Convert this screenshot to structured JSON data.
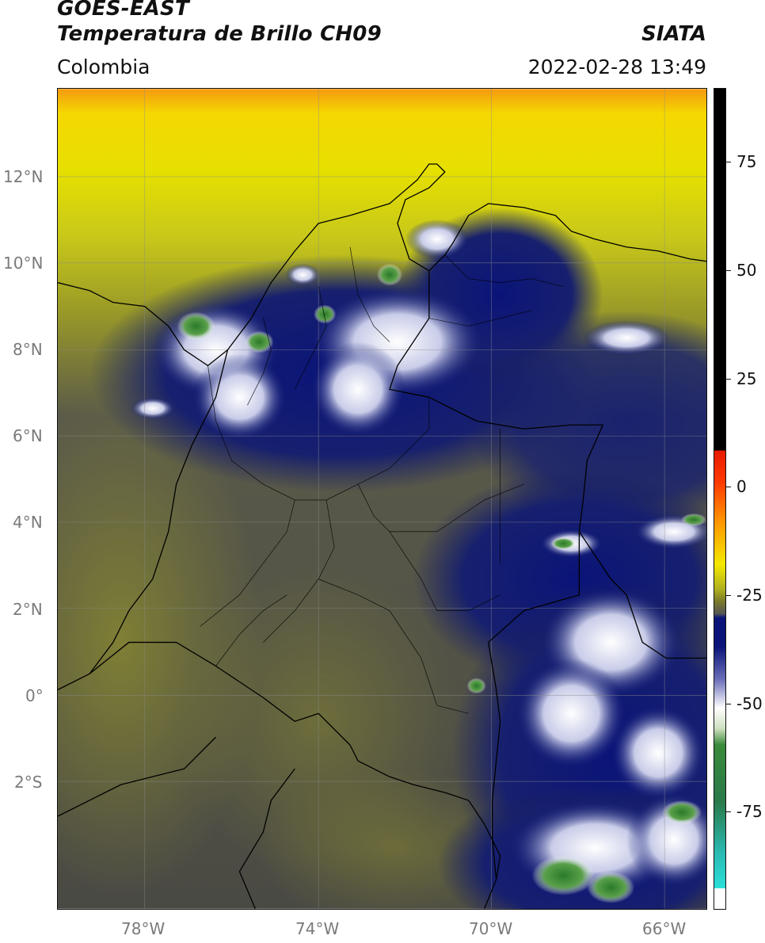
{
  "header": {
    "title_line1": "GOES-EAST",
    "title_line2": "Temperatura de Brillo CH09",
    "subtitle": "Colombia",
    "source": "SIATA",
    "timestamp": "2022-02-28 13:49"
  },
  "map": {
    "lat_labels": [
      "12°N",
      "10°N",
      "8°N",
      "6°N",
      "4°N",
      "2°N",
      "0°",
      "2°S"
    ],
    "lon_labels": [
      "78°W",
      "74°W",
      "70°W",
      "66°W"
    ]
  },
  "colorbar": {
    "labels": [
      "75",
      "50",
      "25",
      "0",
      "-25",
      "-50",
      "-75"
    ],
    "colors": {
      "warm": "#000000",
      "red": "#ff2a00",
      "orange": "#ff9a00",
      "yellow": "#f3ef00",
      "olive": "#7a7a2a",
      "gray": "#555555",
      "navy": "#0a1470",
      "white": "#ffffff",
      "green": "#2a7a2a",
      "teal": "#2ad4c4"
    }
  }
}
